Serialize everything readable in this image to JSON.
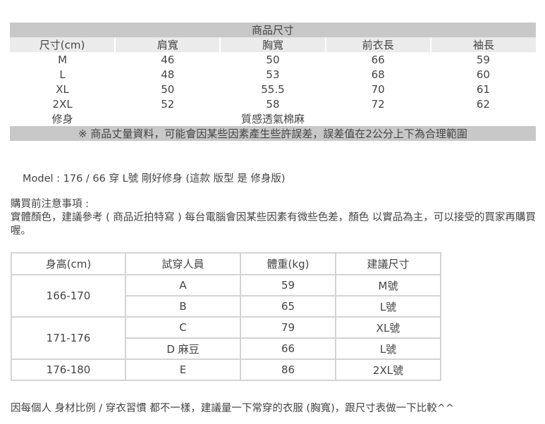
{
  "size_table": {
    "title": "商品尺寸",
    "headers": [
      "尺寸(cm)",
      "肩寬",
      "胸寬",
      "前衣長",
      "袖長"
    ],
    "rows": [
      [
        "M",
        "46",
        "50",
        "66",
        "59"
      ],
      [
        "L",
        "48",
        "53",
        "68",
        "60"
      ],
      [
        "XL",
        "50",
        "55.5",
        "70",
        "61"
      ],
      [
        "2XL",
        "52",
        "58",
        "72",
        "62"
      ]
    ],
    "fit": "修身",
    "material": "質感透氣棉麻",
    "note": "※ 商品丈量資料，可能會因某些因素產生些許誤差，誤差值在2公分上下為合理範圍"
  },
  "model_text": "Model : 176 / 66  穿 L號   剛好修身   (這款 版型 是 修身版)",
  "notice": {
    "title": "購買前注意事項 :",
    "body": "實體顏色，建議參考 ( 商品近拍特寫 ) 每台電腦會因某些因素有微些色差，顏色 以實品為主，可以接受的買家再購買喔。"
  },
  "fit_table": {
    "headers": [
      "身高(cm)",
      "試穿人員",
      "體重(kg)",
      "建議尺寸"
    ],
    "groups": [
      {
        "height": "166-170",
        "rows": [
          [
            "A",
            "59",
            "M號"
          ],
          [
            "B",
            "65",
            "L號"
          ]
        ]
      },
      {
        "height": "171-176",
        "rows": [
          [
            "C",
            "79",
            "XL號"
          ],
          [
            "D 麻豆",
            "66",
            "L號"
          ]
        ]
      },
      {
        "height": "176-180",
        "rows": [
          [
            "E",
            "86",
            "2XL號"
          ]
        ]
      }
    ]
  },
  "footer": "因每個人 身材比例 / 穿衣習慣 都不一樣，建議量一下常穿的衣服 (胸寬)，跟尺寸表做一下比較^^"
}
